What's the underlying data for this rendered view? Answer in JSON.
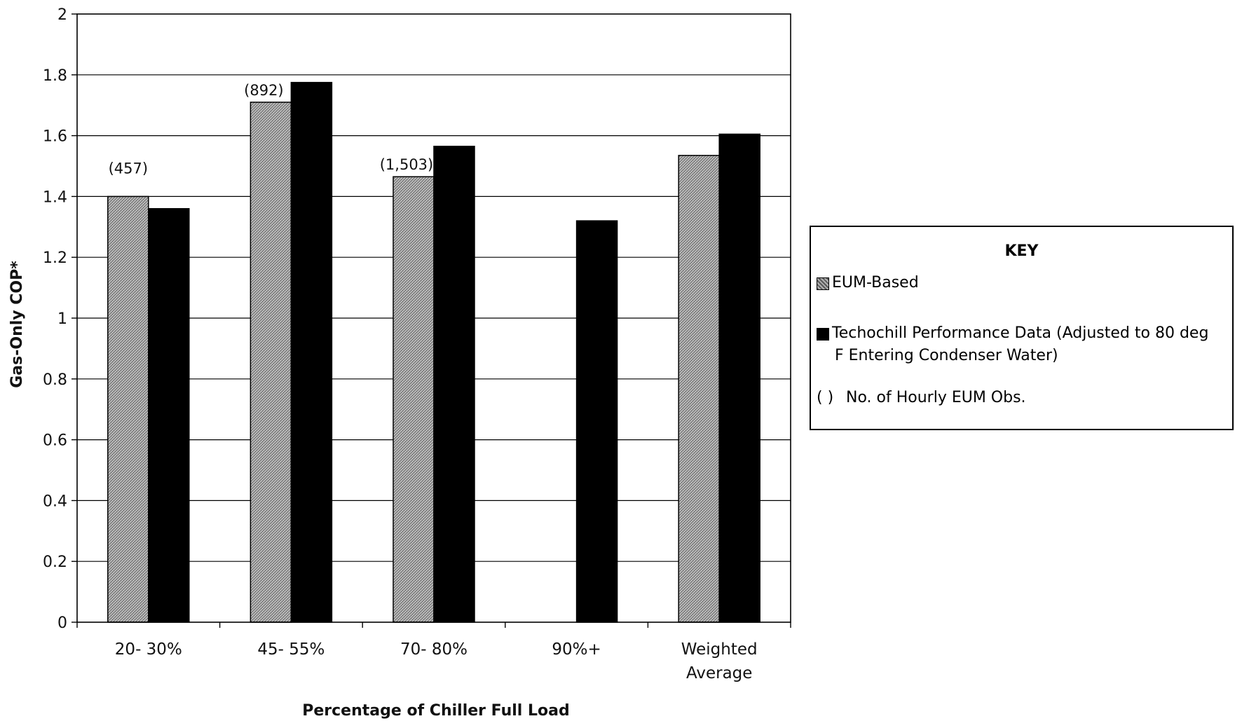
{
  "chart_data": {
    "type": "bar",
    "title": "",
    "xlabel": "Percentage of Chiller Full Load",
    "ylabel": "Gas-Only COP*",
    "ylim": [
      0,
      2
    ],
    "yticks": [
      "0",
      "0.2",
      "0.4",
      "0.6",
      "0.8",
      "1",
      "1.2",
      "1.4",
      "1.6",
      "1.8",
      "2"
    ],
    "grid": true,
    "legend_placement": "right",
    "categories": [
      [
        "20- 30%"
      ],
      [
        "45- 55%"
      ],
      [
        "70- 80%"
      ],
      [
        "90%+"
      ],
      [
        "Weighted",
        "Average"
      ]
    ],
    "series": [
      {
        "name": "EUM-Based",
        "color": "#9a9a9a",
        "values": [
          1.4,
          1.71,
          1.465,
          null,
          1.535
        ]
      },
      {
        "name": "Techochill Performance Data (Adjusted to 80 deg F Entering Condenser Water)",
        "color": "#000000",
        "values": [
          1.36,
          1.775,
          1.565,
          1.32,
          1.605
        ]
      }
    ],
    "annotations": [
      "(457)",
      "(892)",
      "(1,503)",
      "",
      ""
    ]
  },
  "legend": {
    "title": "KEY",
    "items": [
      {
        "label": "EUM-Based",
        "icon": "gray-square"
      },
      {
        "label_line1": "Techochill Performance Data (Adjusted to 80 deg",
        "label_line2": "F Entering Condenser Water)",
        "icon": "black-square"
      },
      {
        "paren": "(   )",
        "label": "No. of Hourly EUM Obs."
      }
    ]
  }
}
